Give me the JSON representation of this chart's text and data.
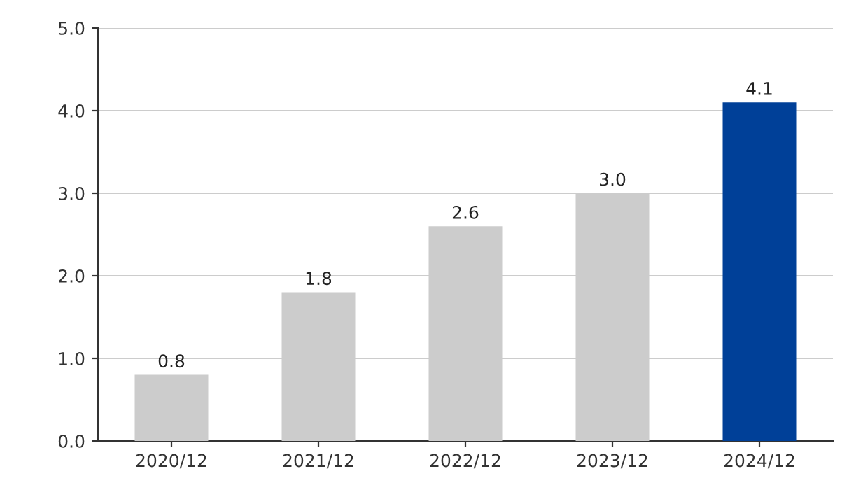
{
  "chart_data": {
    "type": "bar",
    "categories": [
      "2020/12",
      "2021/12",
      "2022/12",
      "2023/12",
      "2024/12"
    ],
    "values": [
      0.8,
      1.8,
      2.6,
      3.0,
      4.1
    ],
    "colors": [
      "#cccccc",
      "#cccccc",
      "#cccccc",
      "#cccccc",
      "#004098"
    ],
    "value_labels": [
      "0.8",
      "1.8",
      "2.6",
      "3.0",
      "4.1"
    ],
    "ylim": [
      0,
      5
    ],
    "yticks": [
      {
        "value": 0,
        "label": "0.0"
      },
      {
        "value": 1,
        "label": "1.0"
      },
      {
        "value": 2,
        "label": "2.0"
      },
      {
        "value": 3,
        "label": "3.0"
      },
      {
        "value": 4,
        "label": "4.0"
      },
      {
        "value": 5,
        "label": "5.0"
      }
    ],
    "grid": "y"
  }
}
